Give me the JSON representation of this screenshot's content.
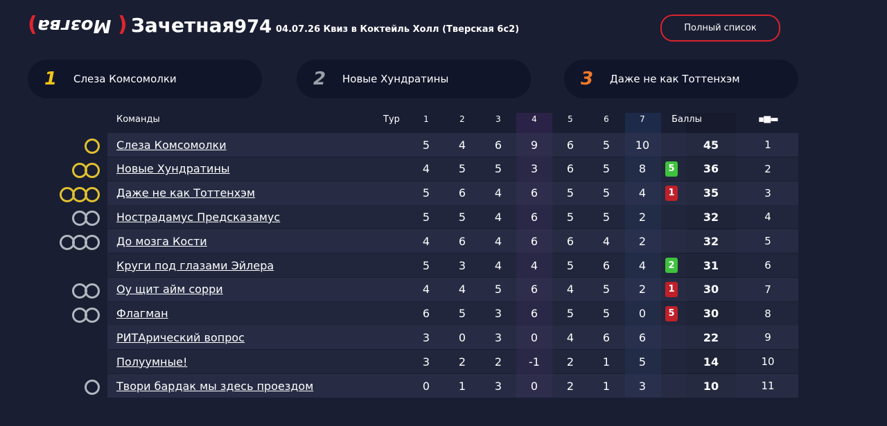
{
  "header": {
    "logo": "Мозгва",
    "title": "Зачетная",
    "number": "974",
    "subtitle": "04.07.26 Квиз в Коктейль Холл (Тверская 6с2)",
    "button": "Полный список"
  },
  "podium": [
    {
      "place": "1",
      "team": "Слеза Комсомолки"
    },
    {
      "place": "2",
      "team": "Новые Хундратины"
    },
    {
      "place": "3",
      "team": "Даже не как Тоттенхэм"
    }
  ],
  "table": {
    "columns": [
      "Команды",
      "Тур",
      "1",
      "2",
      "3",
      "4",
      "5",
      "6",
      "7",
      "Баллы"
    ],
    "rows": [
      {
        "team": "Слеза Комсомолки",
        "rounds": [
          5,
          4,
          6,
          9,
          6,
          5,
          10
        ],
        "total": 45,
        "place": 1
      },
      {
        "team": "Новые Хундратины",
        "rounds": [
          4,
          5,
          5,
          3,
          6,
          5,
          8
        ],
        "change": 5,
        "trend": "up",
        "total": 36,
        "place": 2
      },
      {
        "team": "Даже не как Тоттенхэм",
        "rounds": [
          5,
          6,
          4,
          6,
          5,
          5,
          4
        ],
        "change": 1,
        "trend": "down",
        "total": 35,
        "place": 3
      },
      {
        "team": "Нострадамус Предсказамус",
        "rounds": [
          5,
          5,
          4,
          6,
          5,
          5,
          2
        ],
        "total": 32,
        "place": 4
      },
      {
        "team": "До мозга Кости",
        "rounds": [
          4,
          6,
          4,
          6,
          6,
          4,
          2
        ],
        "total": 32,
        "place": 5
      },
      {
        "team": "Круги под глазами Эйлера",
        "rounds": [
          5,
          3,
          4,
          4,
          5,
          6,
          4
        ],
        "change": 2,
        "trend": "up",
        "total": 31,
        "place": 6
      },
      {
        "team": "Оу щит айм сорри",
        "rounds": [
          4,
          4,
          5,
          6,
          4,
          5,
          2
        ],
        "change": 1,
        "trend": "down",
        "total": 30,
        "place": 7
      },
      {
        "team": "Флагман",
        "rounds": [
          6,
          5,
          3,
          6,
          5,
          5,
          0
        ],
        "change": 5,
        "trend": "down",
        "total": 30,
        "place": 8
      },
      {
        "team": "РИТАрический вопрос",
        "rounds": [
          3,
          0,
          3,
          0,
          4,
          6,
          6
        ],
        "total": 22,
        "place": 9
      },
      {
        "team": "Полуумные!",
        "rounds": [
          3,
          2,
          2,
          -1,
          2,
          1,
          5
        ],
        "total": 14,
        "place": 10
      },
      {
        "team": "Твори бардак мы здесь проездом",
        "rounds": [
          0,
          1,
          3,
          0,
          2,
          1,
          3
        ],
        "total": 10,
        "place": 11
      }
    ]
  }
}
